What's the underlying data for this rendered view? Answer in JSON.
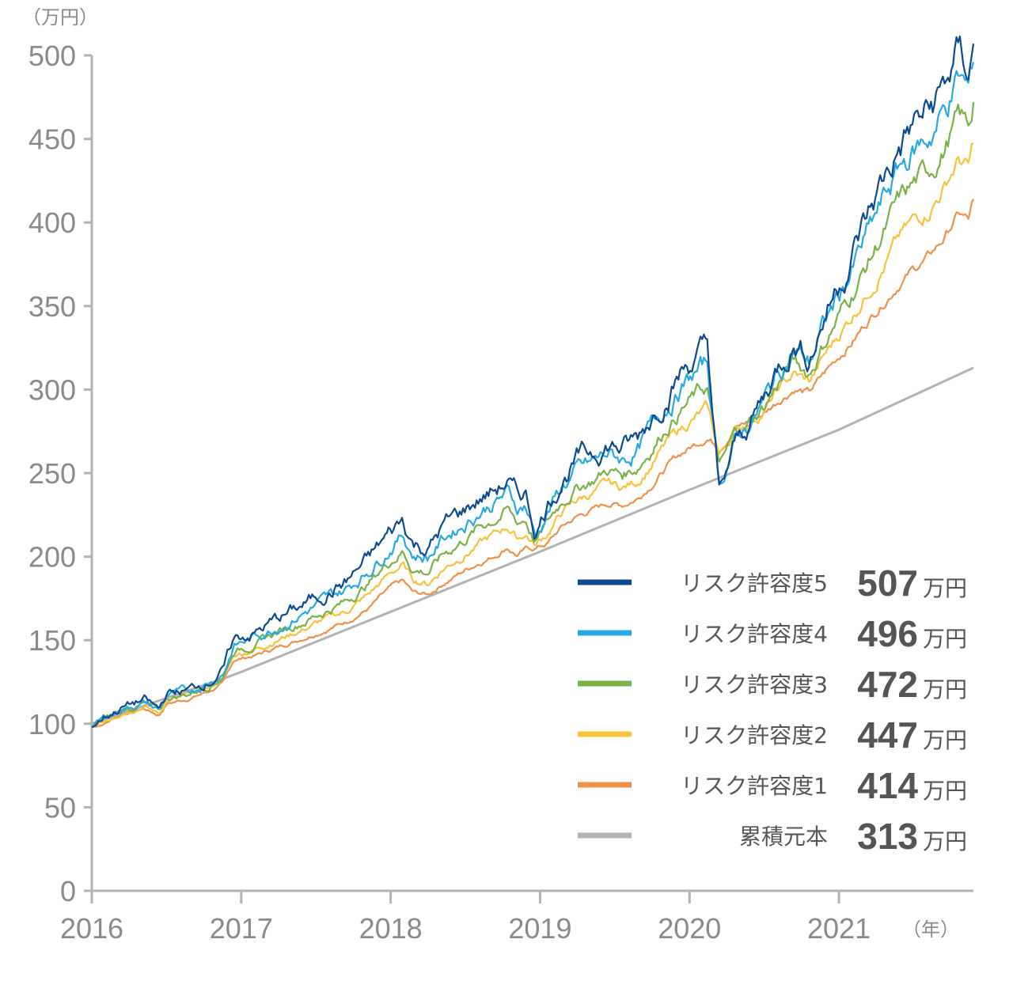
{
  "chart_data": {
    "type": "line",
    "y_unit_label": "（万円）",
    "x_unit_label": "（年）",
    "ylim": [
      0,
      500
    ],
    "xlim": [
      2016,
      2021.9
    ],
    "y_ticks": [
      "0",
      "50",
      "100",
      "150",
      "200",
      "250",
      "300",
      "350",
      "400",
      "450",
      "500"
    ],
    "x_ticks": [
      "2016",
      "2017",
      "2018",
      "2019",
      "2020",
      "2021"
    ],
    "grid": false,
    "legend_placement": "bottom-right",
    "value_unit": "万円",
    "series": [
      {
        "name": "リスク許容度5",
        "color": "#0d4a8f",
        "final_value": "507",
        "points": [
          [
            2016.0,
            98
          ],
          [
            2016.08,
            104
          ],
          [
            2016.2,
            110
          ],
          [
            2016.35,
            114
          ],
          [
            2016.45,
            108
          ],
          [
            2016.5,
            118
          ],
          [
            2016.65,
            120
          ],
          [
            2016.8,
            127
          ],
          [
            2016.88,
            132
          ],
          [
            2016.95,
            150
          ],
          [
            2017.1,
            155
          ],
          [
            2017.25,
            163
          ],
          [
            2017.4,
            170
          ],
          [
            2017.55,
            178
          ],
          [
            2017.7,
            185
          ],
          [
            2017.85,
            198
          ],
          [
            2018.0,
            214
          ],
          [
            2018.08,
            222
          ],
          [
            2018.15,
            208
          ],
          [
            2018.25,
            205
          ],
          [
            2018.35,
            218
          ],
          [
            2018.5,
            228
          ],
          [
            2018.6,
            235
          ],
          [
            2018.7,
            240
          ],
          [
            2018.78,
            245
          ],
          [
            2018.85,
            235
          ],
          [
            2018.9,
            238
          ],
          [
            2018.97,
            215
          ],
          [
            2019.05,
            232
          ],
          [
            2019.15,
            248
          ],
          [
            2019.25,
            258
          ],
          [
            2019.35,
            262
          ],
          [
            2019.45,
            268
          ],
          [
            2019.55,
            265
          ],
          [
            2019.65,
            270
          ],
          [
            2019.75,
            285
          ],
          [
            2019.85,
            300
          ],
          [
            2019.95,
            312
          ],
          [
            2020.05,
            320
          ],
          [
            2020.12,
            325
          ],
          [
            2020.2,
            235
          ],
          [
            2020.3,
            265
          ],
          [
            2020.4,
            280
          ],
          [
            2020.5,
            295
          ],
          [
            2020.6,
            315
          ],
          [
            2020.7,
            330
          ],
          [
            2020.8,
            320
          ],
          [
            2020.9,
            345
          ],
          [
            2021.0,
            365
          ],
          [
            2021.1,
            385
          ],
          [
            2021.2,
            405
          ],
          [
            2021.3,
            425
          ],
          [
            2021.4,
            445
          ],
          [
            2021.5,
            458
          ],
          [
            2021.6,
            465
          ],
          [
            2021.7,
            480
          ],
          [
            2021.8,
            500
          ],
          [
            2021.87,
            490
          ],
          [
            2021.9,
            507
          ]
        ]
      },
      {
        "name": "リスク許容度4",
        "color": "#27a9e1",
        "final_value": "496",
        "points": [
          [
            2016.0,
            98
          ],
          [
            2016.08,
            103
          ],
          [
            2016.2,
            109
          ],
          [
            2016.35,
            113
          ],
          [
            2016.45,
            108
          ],
          [
            2016.5,
            117
          ],
          [
            2016.65,
            119
          ],
          [
            2016.8,
            126
          ],
          [
            2016.88,
            131
          ],
          [
            2016.95,
            147
          ],
          [
            2017.1,
            152
          ],
          [
            2017.25,
            159
          ],
          [
            2017.4,
            166
          ],
          [
            2017.55,
            173
          ],
          [
            2017.7,
            180
          ],
          [
            2017.85,
            192
          ],
          [
            2018.0,
            207
          ],
          [
            2018.08,
            214
          ],
          [
            2018.15,
            202
          ],
          [
            2018.25,
            200
          ],
          [
            2018.35,
            211
          ],
          [
            2018.5,
            221
          ],
          [
            2018.6,
            228
          ],
          [
            2018.7,
            233
          ],
          [
            2018.78,
            238
          ],
          [
            2018.85,
            229
          ],
          [
            2018.9,
            232
          ],
          [
            2018.97,
            212
          ],
          [
            2019.05,
            227
          ],
          [
            2019.15,
            242
          ],
          [
            2019.25,
            251
          ],
          [
            2019.35,
            255
          ],
          [
            2019.45,
            261
          ],
          [
            2019.55,
            258
          ],
          [
            2019.65,
            263
          ],
          [
            2019.75,
            277
          ],
          [
            2019.85,
            291
          ],
          [
            2019.95,
            302
          ],
          [
            2020.05,
            310
          ],
          [
            2020.12,
            315
          ],
          [
            2020.2,
            243
          ],
          [
            2020.3,
            268
          ],
          [
            2020.4,
            280
          ],
          [
            2020.5,
            293
          ],
          [
            2020.6,
            311
          ],
          [
            2020.7,
            324
          ],
          [
            2020.8,
            316
          ],
          [
            2020.9,
            338
          ],
          [
            2021.0,
            356
          ],
          [
            2021.1,
            374
          ],
          [
            2021.2,
            393
          ],
          [
            2021.3,
            412
          ],
          [
            2021.4,
            431
          ],
          [
            2021.5,
            443
          ],
          [
            2021.6,
            451
          ],
          [
            2021.7,
            466
          ],
          [
            2021.8,
            486
          ],
          [
            2021.87,
            478
          ],
          [
            2021.9,
            496
          ]
        ]
      },
      {
        "name": "リスク許容度3",
        "color": "#7ab24a",
        "final_value": "472",
        "points": [
          [
            2016.0,
            98
          ],
          [
            2016.08,
            102
          ],
          [
            2016.2,
            108
          ],
          [
            2016.35,
            112
          ],
          [
            2016.45,
            107
          ],
          [
            2016.5,
            115
          ],
          [
            2016.65,
            118
          ],
          [
            2016.8,
            124
          ],
          [
            2016.88,
            129
          ],
          [
            2016.95,
            144
          ],
          [
            2017.1,
            148
          ],
          [
            2017.25,
            155
          ],
          [
            2017.4,
            161
          ],
          [
            2017.55,
            167
          ],
          [
            2017.7,
            173
          ],
          [
            2017.85,
            184
          ],
          [
            2018.0,
            198
          ],
          [
            2018.08,
            204
          ],
          [
            2018.15,
            193
          ],
          [
            2018.25,
            191
          ],
          [
            2018.35,
            201
          ],
          [
            2018.5,
            211
          ],
          [
            2018.6,
            218
          ],
          [
            2018.7,
            223
          ],
          [
            2018.78,
            228
          ],
          [
            2018.85,
            220
          ],
          [
            2018.9,
            223
          ],
          [
            2018.97,
            209
          ],
          [
            2019.05,
            220
          ],
          [
            2019.15,
            234
          ],
          [
            2019.25,
            242
          ],
          [
            2019.35,
            246
          ],
          [
            2019.45,
            252
          ],
          [
            2019.55,
            249
          ],
          [
            2019.65,
            254
          ],
          [
            2019.75,
            266
          ],
          [
            2019.85,
            279
          ],
          [
            2019.95,
            289
          ],
          [
            2020.05,
            297
          ],
          [
            2020.12,
            301
          ],
          [
            2020.2,
            252
          ],
          [
            2020.3,
            272
          ],
          [
            2020.4,
            280
          ],
          [
            2020.5,
            290
          ],
          [
            2020.6,
            305
          ],
          [
            2020.7,
            316
          ],
          [
            2020.8,
            310
          ],
          [
            2020.9,
            328
          ],
          [
            2021.0,
            344
          ],
          [
            2021.1,
            360
          ],
          [
            2021.2,
            377
          ],
          [
            2021.3,
            394
          ],
          [
            2021.4,
            411
          ],
          [
            2021.5,
            422
          ],
          [
            2021.6,
            430
          ],
          [
            2021.7,
            444
          ],
          [
            2021.8,
            462
          ],
          [
            2021.87,
            456
          ],
          [
            2021.9,
            472
          ]
        ]
      },
      {
        "name": "リスク許容度2",
        "color": "#f9c23c",
        "final_value": "447",
        "points": [
          [
            2016.0,
            98
          ],
          [
            2016.08,
            101
          ],
          [
            2016.2,
            107
          ],
          [
            2016.35,
            111
          ],
          [
            2016.45,
            106
          ],
          [
            2016.5,
            114
          ],
          [
            2016.65,
            117
          ],
          [
            2016.8,
            122
          ],
          [
            2016.88,
            127
          ],
          [
            2016.95,
            141
          ],
          [
            2017.1,
            145
          ],
          [
            2017.25,
            151
          ],
          [
            2017.4,
            156
          ],
          [
            2017.55,
            162
          ],
          [
            2017.7,
            167
          ],
          [
            2017.85,
            177
          ],
          [
            2018.0,
            190
          ],
          [
            2018.08,
            195
          ],
          [
            2018.15,
            186
          ],
          [
            2018.25,
            184
          ],
          [
            2018.35,
            193
          ],
          [
            2018.5,
            202
          ],
          [
            2018.6,
            208
          ],
          [
            2018.7,
            213
          ],
          [
            2018.78,
            218
          ],
          [
            2018.85,
            211
          ],
          [
            2018.9,
            214
          ],
          [
            2018.97,
            207
          ],
          [
            2019.05,
            214
          ],
          [
            2019.15,
            227
          ],
          [
            2019.25,
            234
          ],
          [
            2019.35,
            238
          ],
          [
            2019.45,
            243
          ],
          [
            2019.55,
            241
          ],
          [
            2019.65,
            245
          ],
          [
            2019.75,
            256
          ],
          [
            2019.85,
            268
          ],
          [
            2019.95,
            277
          ],
          [
            2020.05,
            284
          ],
          [
            2020.12,
            288
          ],
          [
            2020.2,
            260
          ],
          [
            2020.3,
            275
          ],
          [
            2020.4,
            281
          ],
          [
            2020.5,
            288
          ],
          [
            2020.6,
            300
          ],
          [
            2020.7,
            309
          ],
          [
            2020.8,
            304
          ],
          [
            2020.9,
            319
          ],
          [
            2021.0,
            333
          ],
          [
            2021.1,
            346
          ],
          [
            2021.2,
            361
          ],
          [
            2021.3,
            375
          ],
          [
            2021.4,
            390
          ],
          [
            2021.5,
            400
          ],
          [
            2021.6,
            408
          ],
          [
            2021.7,
            421
          ],
          [
            2021.8,
            438
          ],
          [
            2021.87,
            432
          ],
          [
            2021.9,
            447
          ]
        ]
      },
      {
        "name": "リスク許容度1",
        "color": "#f0904a",
        "final_value": "414",
        "points": [
          [
            2016.0,
            98
          ],
          [
            2016.08,
            100
          ],
          [
            2016.2,
            106
          ],
          [
            2016.35,
            109
          ],
          [
            2016.45,
            105
          ],
          [
            2016.5,
            112
          ],
          [
            2016.65,
            115
          ],
          [
            2016.8,
            120
          ],
          [
            2016.88,
            124
          ],
          [
            2016.95,
            138
          ],
          [
            2017.1,
            141
          ],
          [
            2017.25,
            146
          ],
          [
            2017.4,
            151
          ],
          [
            2017.55,
            156
          ],
          [
            2017.7,
            161
          ],
          [
            2017.85,
            169
          ],
          [
            2018.0,
            181
          ],
          [
            2018.08,
            185
          ],
          [
            2018.15,
            178
          ],
          [
            2018.25,
            177
          ],
          [
            2018.35,
            184
          ],
          [
            2018.5,
            192
          ],
          [
            2018.6,
            197
          ],
          [
            2018.7,
            201
          ],
          [
            2018.78,
            206
          ],
          [
            2018.85,
            201
          ],
          [
            2018.9,
            204
          ],
          [
            2018.97,
            205
          ],
          [
            2019.05,
            208
          ],
          [
            2019.15,
            218
          ],
          [
            2019.25,
            224
          ],
          [
            2019.35,
            228
          ],
          [
            2019.45,
            232
          ],
          [
            2019.55,
            231
          ],
          [
            2019.65,
            235
          ],
          [
            2019.75,
            244
          ],
          [
            2019.85,
            254
          ],
          [
            2019.95,
            262
          ],
          [
            2020.05,
            268
          ],
          [
            2020.12,
            272
          ],
          [
            2020.2,
            266
          ],
          [
            2020.3,
            277
          ],
          [
            2020.4,
            281
          ],
          [
            2020.5,
            286
          ],
          [
            2020.6,
            294
          ],
          [
            2020.7,
            301
          ],
          [
            2020.8,
            298
          ],
          [
            2020.9,
            309
          ],
          [
            2021.0,
            320
          ],
          [
            2021.1,
            330
          ],
          [
            2021.2,
            342
          ],
          [
            2021.3,
            353
          ],
          [
            2021.4,
            364
          ],
          [
            2021.5,
            372
          ],
          [
            2021.6,
            379
          ],
          [
            2021.7,
            390
          ],
          [
            2021.8,
            405
          ],
          [
            2021.87,
            401
          ],
          [
            2021.9,
            414
          ]
        ]
      },
      {
        "name": "累積元本",
        "color": "#b3b3b3",
        "final_value": "313",
        "points": [
          [
            2016.0,
            100
          ],
          [
            2016.88,
            127
          ],
          [
            2017.0,
            131
          ],
          [
            2018.0,
            167
          ],
          [
            2019.0,
            203
          ],
          [
            2020.0,
            240
          ],
          [
            2021.0,
            276
          ],
          [
            2021.9,
            313
          ]
        ]
      }
    ]
  }
}
